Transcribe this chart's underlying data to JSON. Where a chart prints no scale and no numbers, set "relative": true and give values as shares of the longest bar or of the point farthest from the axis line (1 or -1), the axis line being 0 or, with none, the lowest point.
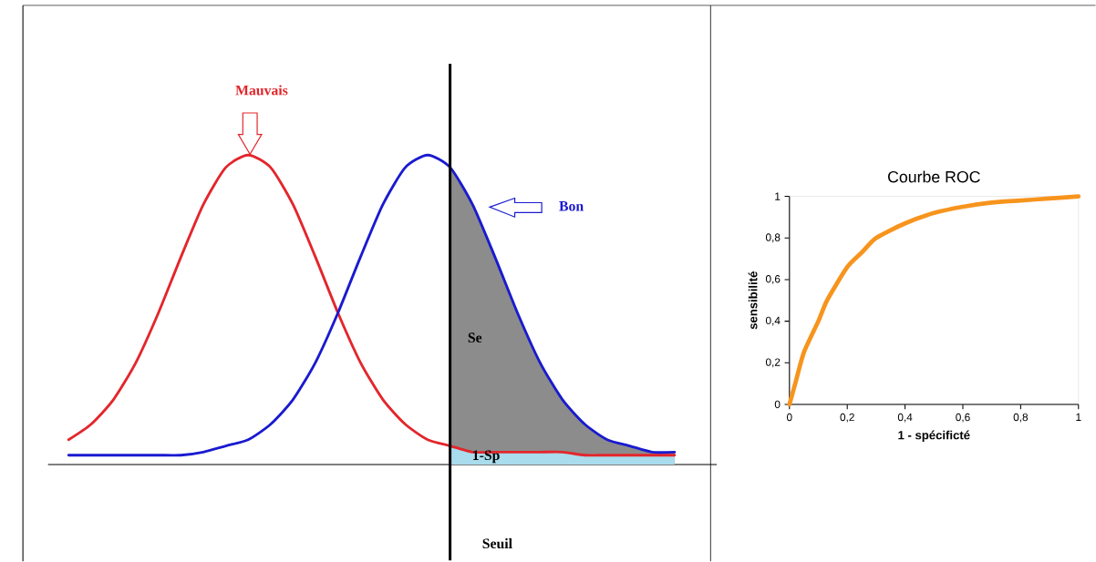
{
  "chart_data": [
    {
      "type": "line",
      "relative": true,
      "categories": [
        null,
        null,
        null,
        null,
        null,
        null,
        null,
        null,
        null,
        null,
        null,
        null,
        null,
        null,
        null,
        null,
        null,
        null,
        null,
        null,
        null,
        null,
        null,
        null,
        null,
        null,
        null,
        null
      ],
      "series": [
        {
          "name": "Mauvais",
          "color": "#e3262b",
          "values": [
            0.08,
            0.13,
            0.21,
            0.33,
            0.49,
            0.67,
            0.84,
            0.96,
            1.0,
            0.96,
            0.84,
            0.67,
            0.49,
            0.33,
            0.21,
            0.13,
            0.08,
            0.06,
            0.04,
            0.04,
            0.04,
            0.04,
            0.04,
            0.03,
            0.03,
            0.03,
            0.03,
            0.03
          ]
        },
        {
          "name": "Bon",
          "color": "#1a1ad0",
          "values": [
            0.03,
            0.03,
            0.03,
            0.03,
            0.03,
            0.03,
            0.04,
            0.06,
            0.08,
            0.13,
            0.21,
            0.33,
            0.49,
            0.67,
            0.84,
            0.96,
            1.0,
            0.96,
            0.84,
            0.67,
            0.49,
            0.33,
            0.21,
            0.13,
            0.08,
            0.06,
            0.04,
            0.04
          ]
        },
        {
          "type": "area",
          "color": "#8c8c8c",
          "values": [
            null,
            null,
            null,
            null,
            null,
            null,
            null,
            null,
            null,
            null,
            null,
            null,
            null,
            null,
            null,
            null,
            null,
            0.96,
            0.84,
            0.67,
            0.49,
            0.33,
            0.21,
            0.13,
            0.08,
            0.06,
            0.04,
            0.04
          ]
        },
        {
          "type": "area",
          "color": "#a9dcec",
          "values": [
            null,
            null,
            null,
            null,
            null,
            null,
            null,
            null,
            null,
            null,
            null,
            null,
            null,
            null,
            null,
            null,
            null,
            0.06,
            0.04,
            0.04,
            0.04,
            0.04,
            0.04,
            0.03,
            0.03,
            0.03,
            0.03,
            0.03
          ]
        }
      ],
      "annotations": [
        "Se",
        "1-Sp",
        "Seuil"
      ]
    },
    {
      "type": "line",
      "title": "Courbe ROC",
      "xlabel": "1 - spécificté",
      "ylabel": "sensibilité",
      "x": [
        0,
        0.02,
        0.05,
        0.1,
        0.13,
        0.2,
        0.25,
        0.3,
        0.4,
        0.5,
        0.6,
        0.7,
        0.8,
        0.9,
        1
      ],
      "series": [
        {
          "color": "#f7941d",
          "values": [
            0,
            0.1,
            0.25,
            0.4,
            0.5,
            0.66,
            0.73,
            0.8,
            0.87,
            0.92,
            0.95,
            0.97,
            0.98,
            0.99,
            1
          ]
        }
      ],
      "xlim": [
        0,
        1
      ],
      "ylim": [
        0,
        1
      ],
      "xticks": [
        0,
        {
          "value": 0.2,
          "label": "0,2"
        },
        {
          "value": 0.4,
          "label": "0,4"
        },
        {
          "value": 0.6,
          "label": "0,6"
        },
        {
          "value": 0.8,
          "label": "0,8"
        },
        1
      ],
      "yticks": [
        0,
        {
          "value": 0.2,
          "label": "0,2"
        },
        {
          "value": 0.4,
          "label": "0,4"
        },
        {
          "value": 0.6,
          "label": "0,6"
        },
        {
          "value": 0.8,
          "label": "0,8"
        },
        1
      ]
    }
  ]
}
